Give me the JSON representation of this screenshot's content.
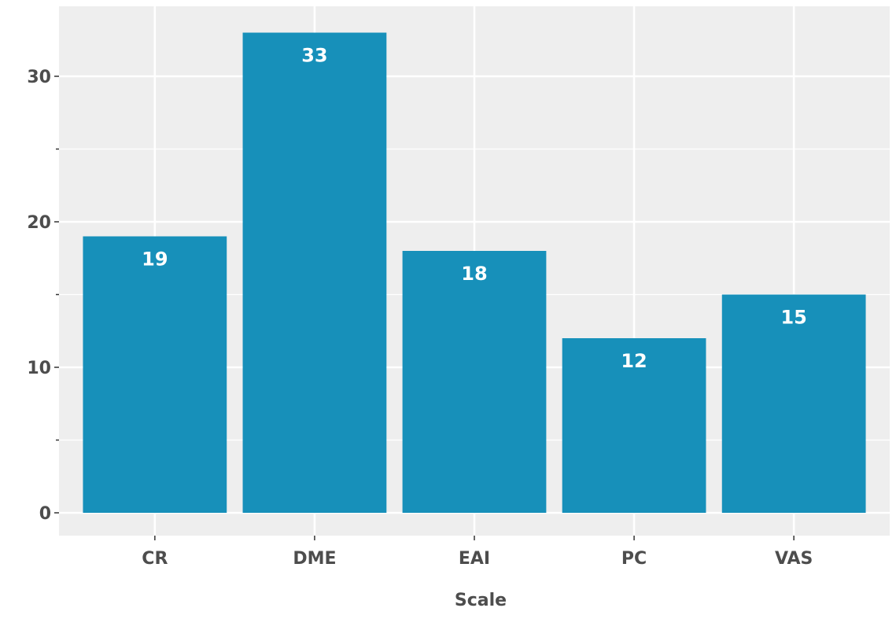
{
  "chart_data": {
    "type": "bar",
    "categories": [
      "CR",
      "DME",
      "EAI",
      "PC",
      "VAS"
    ],
    "values": [
      19,
      33,
      18,
      12,
      15
    ],
    "title": "",
    "xlabel": "Scale",
    "ylabel": "",
    "ylim": [
      0,
      34
    ],
    "yticks": [
      0,
      10,
      20,
      30
    ],
    "grid": true,
    "bar_color": "#1790BA",
    "panel_color": "#EEEEEE",
    "grid_color": "#FFFFFF"
  }
}
